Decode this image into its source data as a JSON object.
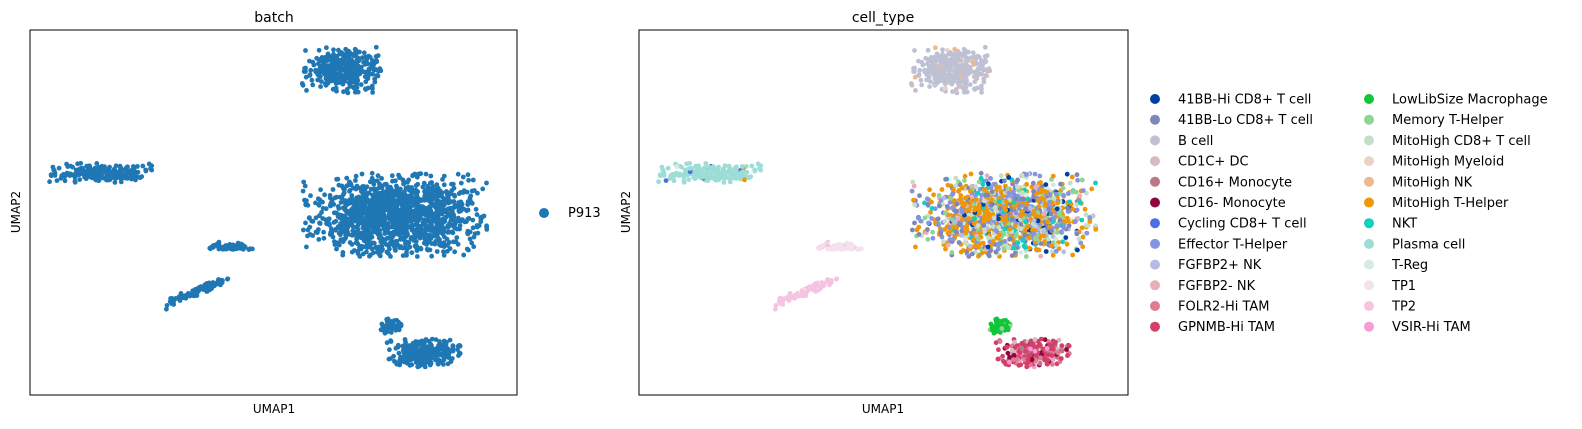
{
  "chart_data": [
    {
      "type": "scatter",
      "title": "batch",
      "xlabel": "UMAP1",
      "ylabel": "UMAP2",
      "grid": false,
      "legend": {
        "placement": "right",
        "entries": [
          {
            "name": "P913",
            "color": "#1f77b4"
          }
        ]
      }
    },
    {
      "type": "scatter",
      "title": "cell_type",
      "xlabel": "UMAP1",
      "ylabel": "UMAP2",
      "grid": false,
      "legend": {
        "placement": "right",
        "columns": 2,
        "entries": [
          {
            "name": "41BB-Hi CD8+ T cell",
            "color": "#023fa5"
          },
          {
            "name": "41BB-Lo CD8+ T cell",
            "color": "#7d87b9"
          },
          {
            "name": "B cell",
            "color": "#bec1d4"
          },
          {
            "name": "CD1C+ DC",
            "color": "#d6bcc0"
          },
          {
            "name": "CD16+ Monocyte",
            "color": "#bb7784"
          },
          {
            "name": "CD16- Monocyte",
            "color": "#8e063b"
          },
          {
            "name": "Cycling CD8+ T cell",
            "color": "#4a6fe3"
          },
          {
            "name": "Effector T-Helper",
            "color": "#8595e1"
          },
          {
            "name": "FGFBP2+ NK",
            "color": "#b5bbe3"
          },
          {
            "name": "FGFBP2- NK",
            "color": "#e6afb9"
          },
          {
            "name": "FOLR2-Hi TAM",
            "color": "#e07b91"
          },
          {
            "name": "GPNMB-Hi TAM",
            "color": "#d33f6a"
          },
          {
            "name": "LowLibSize Macrophage",
            "color": "#11c638"
          },
          {
            "name": "Memory T-Helper",
            "color": "#8dd593"
          },
          {
            "name": "MitoHigh CD8+ T cell",
            "color": "#c6dec7"
          },
          {
            "name": "MitoHigh Myeloid",
            "color": "#ead3c6"
          },
          {
            "name": "MitoHigh NK",
            "color": "#f0b98d"
          },
          {
            "name": "MitoHigh T-Helper",
            "color": "#ef9708"
          },
          {
            "name": "NKT",
            "color": "#0fcfc0"
          },
          {
            "name": "Plasma cell",
            "color": "#9cded6"
          },
          {
            "name": "T-Reg",
            "color": "#d5eae7"
          },
          {
            "name": "TP1",
            "color": "#f3e1eb"
          },
          {
            "name": "TP2",
            "color": "#f6c4e1"
          },
          {
            "name": "VSIR-Hi TAM",
            "color": "#f79cd4"
          }
        ]
      }
    }
  ]
}
